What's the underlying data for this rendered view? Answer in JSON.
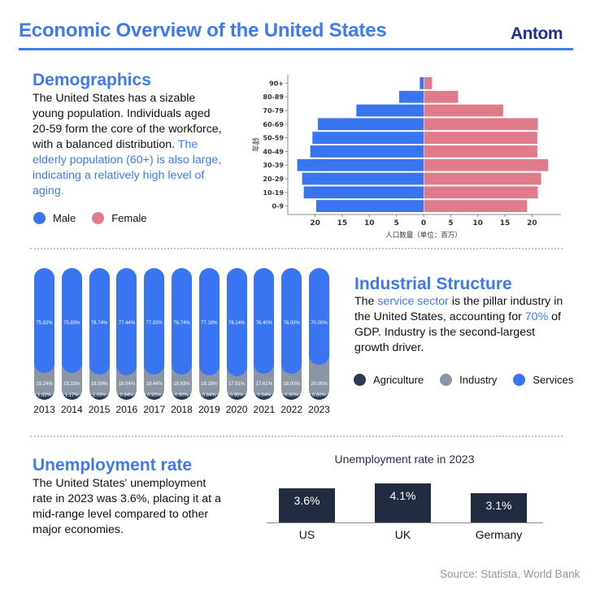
{
  "header": {
    "title": "Economic Overview of the United States",
    "logo": "Antom"
  },
  "colors": {
    "accent": "#3d7af0",
    "male": "#3a75f1",
    "female": "#e07b8c",
    "agriculture": "#2c3a52",
    "industry": "#8a96a3",
    "services": "#3a75f1",
    "unemployment_bar": "#222c40"
  },
  "demographics": {
    "heading": "Demographics",
    "text_plain": "The United States has a sizable young population. Individuals aged 20-59 form the core of the workforce, with a balanced distribution. ",
    "text_highlight": "The elderly population (60+) is also large, indicating a relatively high level of aging.",
    "legend": [
      {
        "label": "Male",
        "color": "#3a75f1"
      },
      {
        "label": "Female",
        "color": "#e07b8c"
      }
    ]
  },
  "industrial": {
    "heading": "Industrial Structure",
    "text_1": "The ",
    "text_hl_1": "service sector",
    "text_2": " is the pillar industry in the United States, accounting for ",
    "text_hl_2": "70%",
    "text_3": " of GDP. Industry is the second-largest growth driver.",
    "legend": [
      {
        "label": "Agriculture",
        "color": "#2c3a52"
      },
      {
        "label": "Industry",
        "color": "#8a96a3"
      },
      {
        "label": "Services",
        "color": "#3a75f1"
      }
    ]
  },
  "unemployment": {
    "heading": "Unemployment rate",
    "text": "The United States' unemployment rate in 2023 was 3.6%, placing it at a mid-range level compared to other major economies."
  },
  "source": "Source: Statista, World Bank",
  "chart_data": [
    {
      "type": "bar",
      "orientation": "horizontal",
      "subtype": "population-pyramid",
      "title": "",
      "xlabel": "人口数量（单位：百万）",
      "ylabel": "年龄",
      "categories": [
        "0-9",
        "10-19",
        "20-29",
        "30-39",
        "40-49",
        "50-59",
        "60-69",
        "70-79",
        "80-89",
        "90+"
      ],
      "series": [
        {
          "name": "Male",
          "values": [
            19.8,
            22.1,
            22.4,
            23.3,
            20.9,
            20.5,
            19.5,
            12.4,
            4.5,
            0.7
          ]
        },
        {
          "name": "Female",
          "values": [
            19.0,
            21.0,
            21.6,
            22.9,
            20.9,
            20.9,
            21.0,
            14.6,
            6.3,
            1.5
          ]
        }
      ],
      "xticks": [
        "20",
        "15",
        "10",
        "5",
        "0",
        "5",
        "10",
        "15",
        "20"
      ],
      "xlim": [
        -25,
        25
      ],
      "legend": "bottom-left"
    },
    {
      "type": "bar",
      "orientation": "vertical",
      "subtype": "stacked-100",
      "title": "",
      "categories": [
        "2013",
        "2014",
        "2015",
        "2016",
        "2017",
        "2018",
        "2019",
        "2020",
        "2021",
        "2022",
        "2023"
      ],
      "series": [
        {
          "name": "Services",
          "values": [
            75.82,
            75.83,
            76.74,
            77.44,
            77.03,
            76.74,
            77.18,
            78.14,
            76.4,
            76.0,
            70.0
          ],
          "labels": [
            "75.82%",
            "75.83%",
            "76.74%",
            "77.44%",
            "77.03%",
            "76.74%",
            "77.18%",
            "78.14%",
            "76.40%",
            "76.00%",
            "70.00%"
          ]
        },
        {
          "name": "Industry",
          "values": [
            19.24,
            19.33,
            18.59,
            18.04,
            18.44,
            18.63,
            18.28,
            17.51,
            17.61,
            18.0,
            20.0
          ],
          "labels": [
            "19.24%",
            "19.33%",
            "18.59%",
            "18.04%",
            "18.44%",
            "18.63%",
            "18.28%",
            "17.51%",
            "17.61%",
            "18.00%",
            "20.00%"
          ]
        },
        {
          "name": "Agriculture",
          "values": [
            1.32,
            1.17,
            1.03,
            0.94,
            0.95,
            0.9,
            0.84,
            0.95,
            0.94,
            0.9,
            0.8
          ],
          "labels": [
            "1.32%",
            "1.17%",
            "1.03%",
            "0.94%",
            "0.95%",
            "0.90%",
            "0.84%",
            "0.95%",
            "0.94%",
            "0.90%",
            "0.80%"
          ]
        }
      ],
      "legend": "right"
    },
    {
      "type": "bar",
      "title": "Unemployment rate in 2023",
      "categories": [
        "US",
        "UK",
        "Germany"
      ],
      "values": [
        3.6,
        4.1,
        3.1
      ],
      "labels": [
        "3.6%",
        "4.1%",
        "3.1%"
      ],
      "xlabel": "",
      "ylabel": "",
      "ylim": [
        0,
        4.3
      ]
    }
  ]
}
